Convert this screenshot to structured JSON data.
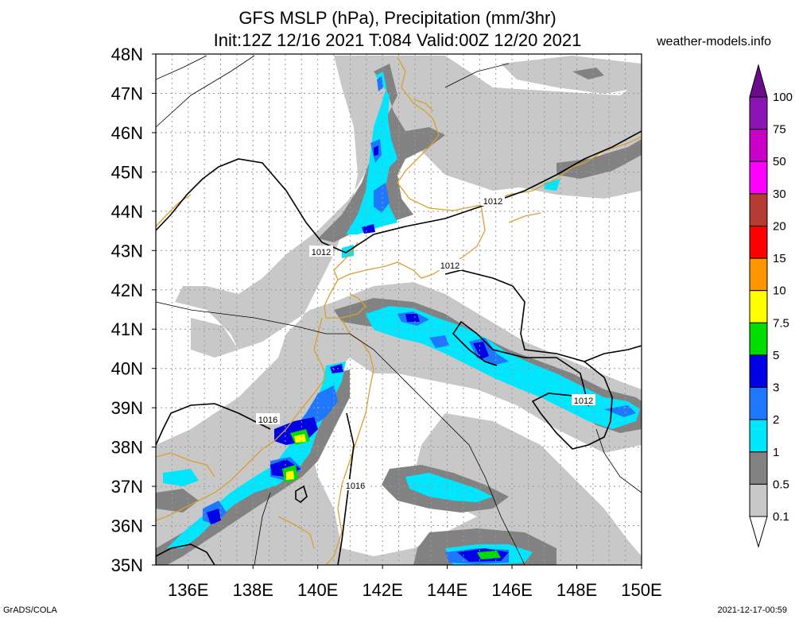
{
  "header": {
    "title_line1": "GFS MSLP (hPa), Precipitation (mm/3hr)",
    "title_line2": "Init:12Z 12/16 2021 T:084 Valid:00Z 12/20 2021",
    "site": "weather-models.info"
  },
  "footer": {
    "left": "GrADS/COLA",
    "right": "2021-12-17-00:59"
  },
  "map": {
    "lat_labels": [
      "48N",
      "47N",
      "46N",
      "45N",
      "44N",
      "43N",
      "42N",
      "41N",
      "40N",
      "39N",
      "38N",
      "37N",
      "36N",
      "35N"
    ],
    "lon_labels": [
      "136E",
      "138E",
      "140E",
      "142E",
      "144E",
      "146E",
      "148E",
      "150E"
    ],
    "isobar_labels": [
      "1012",
      "1012",
      "1012",
      "1012",
      "1016",
      "1016"
    ],
    "colors": {
      "coast": "#d9a030",
      "isobar": "#000000",
      "grid": "#9a9a9a"
    }
  },
  "legend": {
    "labels": [
      "100",
      "75",
      "50",
      "30",
      "20",
      "15",
      "10",
      "7.5",
      "5",
      "3",
      "2",
      "1",
      "0.5",
      "0.1"
    ],
    "colors": [
      "#6a0a8c",
      "#8c14b4",
      "#c800c8",
      "#ff00ff",
      "#b43c32",
      "#ff0000",
      "#ff9600",
      "#ffff00",
      "#00dc00",
      "#0000e6",
      "#1e78ff",
      "#00e6ff",
      "#828282",
      "#c8c8c8"
    ]
  }
}
